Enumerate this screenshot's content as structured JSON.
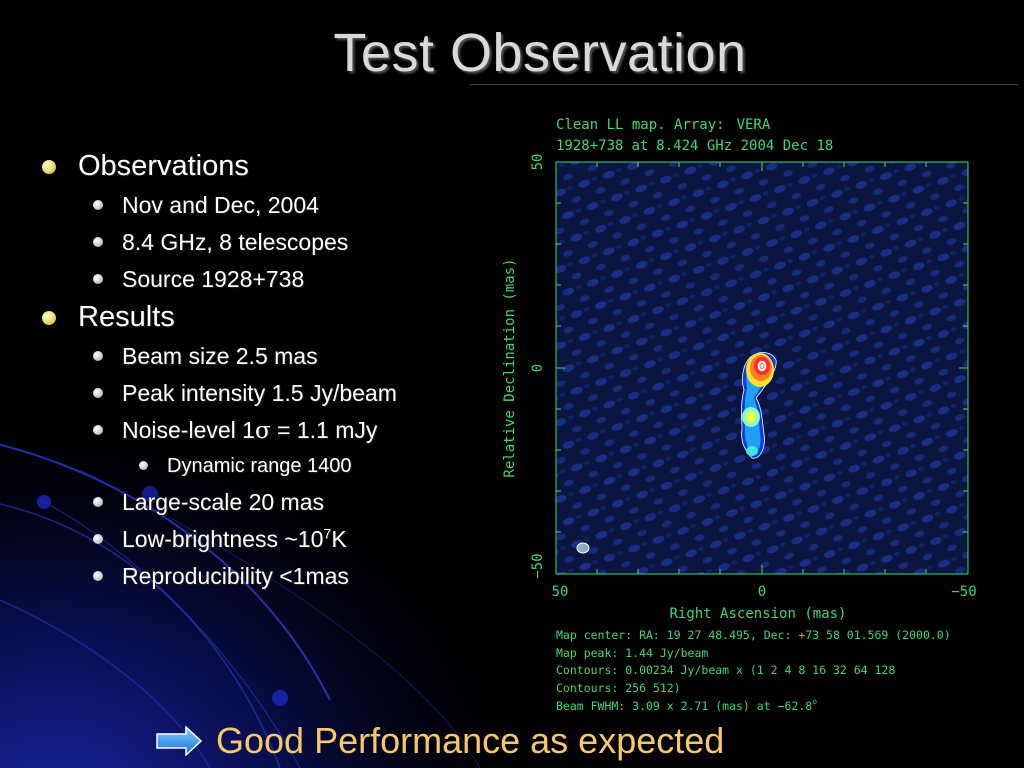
{
  "slide": {
    "title": "Test Observation",
    "bullets": {
      "observations": "Observations",
      "nov_dec": "Nov and Dec, 2004",
      "freq": "8.4 GHz, 8 telescopes",
      "source": "Source 1928+738",
      "results": "Results",
      "beam": "Beam size 2.5 mas",
      "peak": "Peak intensity 1.5 Jy/beam",
      "noise_prefix": "Noise-level 1",
      "noise_sigma": "σ",
      "noise_suffix": " = 1.1 mJy",
      "dynamic": "Dynamic range 1400",
      "large": "Large-scale 20 mas",
      "low_prefix": "Low-brightness ~10",
      "low_exp": "7",
      "low_suffix": "K",
      "repro": "Reproducibility <1mas"
    },
    "footer": "Good Performance as expected"
  },
  "map": {
    "header_line1_prefix": "Clean LL map.  Array:",
    "header_array": "VERA",
    "header_line2_prefix": "1928+738",
    "header_line2_at": "at",
    "header_line2_rest": "8.424 GHz 2004 Dec 18",
    "y_axis_label": "Relative Declination  (mas)",
    "x_axis_label": "Right Ascension  (mas)",
    "y_ticks": [
      "50",
      "0",
      "−50"
    ],
    "x_ticks": [
      "50",
      "0",
      "−50"
    ],
    "info": {
      "line1": "Map center:  RA: 19 27 48.495,  Dec: +73 58 01.569 (2000.0)",
      "line2": "Map peak: 1.44 Jy/beam",
      "line3": "Contours: 0.00234 Jy/beam x (1 2 4 8 16 32 64 128",
      "line4": "Contours: 256 512)",
      "line5_prefix": "Beam FWHM: 3.09 x 2.71 (mas) at −62.8",
      "line5_deg": "o"
    },
    "colors": {
      "text": "#3fd86e",
      "frame": "#3fd86e",
      "background": "#0a1640",
      "wave": "#1a3290"
    }
  }
}
